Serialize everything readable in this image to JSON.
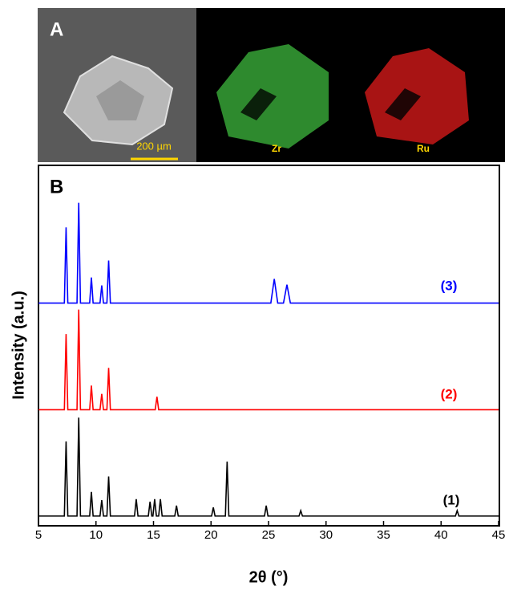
{
  "panel_a": {
    "label": "A",
    "scale_bar": "200 µm",
    "maps": [
      "Zr",
      "Ru"
    ]
  },
  "chart_data": {
    "type": "line",
    "label": "B",
    "xlabel": "2θ (°)",
    "ylabel": "Intensity (a.u.)",
    "xlim": [
      5,
      45
    ],
    "xticks": [
      5,
      10,
      15,
      20,
      25,
      30,
      35,
      40,
      45
    ],
    "ylim": [
      0,
      100
    ],
    "series": [
      {
        "name": "(1)",
        "color": "#000000",
        "x": [
          5,
          7.25,
          7.4,
          7.55,
          8.35,
          8.5,
          8.65,
          9.45,
          9.6,
          9.75,
          10.35,
          10.5,
          10.65,
          10.95,
          11.1,
          11.25,
          13.35,
          13.5,
          13.65,
          14.55,
          14.7,
          14.85,
          14.95,
          15.1,
          15.25,
          15.45,
          15.6,
          15.75,
          16.85,
          17,
          17.15,
          20.05,
          20.2,
          20.35,
          21.25,
          21.4,
          21.55,
          24.65,
          24.8,
          24.95,
          27.65,
          27.8,
          27.95,
          41.25,
          41.4,
          41.55,
          45
        ],
        "values": [
          2.7,
          2.7,
          23.4,
          2.7,
          2.7,
          30,
          2.7,
          2.7,
          9.4,
          2.7,
          2.7,
          7.1,
          2.7,
          2.7,
          13.7,
          2.7,
          2.7,
          7.4,
          2.7,
          2.7,
          6.7,
          2.7,
          2.7,
          7.4,
          2.7,
          2.7,
          7.4,
          2.7,
          2.7,
          5.6,
          2.7,
          2.7,
          5.1,
          2.7,
          2.7,
          17.8,
          2.7,
          2.7,
          5.6,
          2.7,
          2.7,
          4.2,
          2.7,
          2.7,
          4.2,
          2.7,
          2.7
        ]
      },
      {
        "name": "(2)",
        "color": "#ff0000",
        "x": [
          5,
          7.25,
          7.4,
          7.55,
          8.35,
          8.5,
          8.65,
          9.45,
          9.6,
          9.75,
          10.35,
          10.5,
          10.65,
          10.95,
          11.1,
          11.25,
          15.15,
          15.3,
          15.45,
          45
        ],
        "values": [
          32.2,
          32.2,
          53.2,
          32.2,
          32.2,
          60,
          32.2,
          32.2,
          38.9,
          32.2,
          32.2,
          36.6,
          32.2,
          32.2,
          43.8,
          32.2,
          32.2,
          35.8,
          32.2,
          32.2
        ]
      },
      {
        "name": "(3)",
        "color": "#0000ff",
        "x": [
          5,
          7.25,
          7.4,
          7.55,
          8.35,
          8.5,
          8.65,
          9.45,
          9.6,
          9.75,
          10.35,
          10.5,
          10.65,
          10.95,
          11.1,
          11.25,
          25.2,
          25.5,
          25.8,
          26.3,
          26.6,
          26.9,
          45
        ],
        "values": [
          61.8,
          61.8,
          82.8,
          61.8,
          61.8,
          89.6,
          61.8,
          61.8,
          68.9,
          61.8,
          61.8,
          66.7,
          61.8,
          61.8,
          73.6,
          61.8,
          61.8,
          68.5,
          61.8,
          61.8,
          66.9,
          61.8,
          61.8
        ]
      }
    ]
  }
}
